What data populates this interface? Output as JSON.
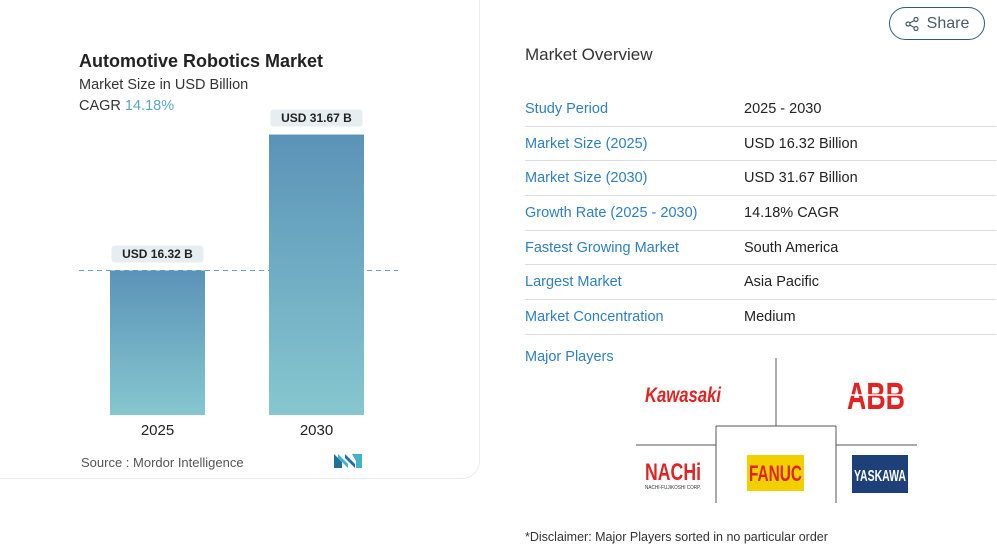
{
  "chart": {
    "title": "Automotive Robotics Market",
    "subtitle": "Market Size in USD Billion",
    "cagr_label": "CAGR",
    "cagr_value": "14.18%",
    "source": "Source :  Mordor Intelligence"
  },
  "chart_data": {
    "type": "bar",
    "categories": [
      "2025",
      "2030"
    ],
    "values": [
      16.32,
      31.67
    ],
    "data_labels": [
      "USD 16.32 B",
      "USD 31.67 B"
    ],
    "title": "Automotive Robotics Market",
    "xlabel": "",
    "ylabel": "Market Size in USD Billion",
    "ylim": [
      0,
      35
    ],
    "reference_line": 16.32,
    "colors": {
      "bar_top": "#5b93b8",
      "bar_bottom": "#86c7cf",
      "label_bg": "#e6eef2",
      "ref_line": "#6f9fc0"
    }
  },
  "share": {
    "label": "Share"
  },
  "overview": {
    "title": "Market Overview",
    "rows": [
      {
        "label": "Study Period",
        "value": "2025 - 2030"
      },
      {
        "label": "Market Size (2025)",
        "value": "USD 16.32 Billion"
      },
      {
        "label": "Market Size (2030)",
        "value": "USD 31.67 Billion"
      },
      {
        "label": "Growth Rate (2025 - 2030)",
        "value": "14.18% CAGR"
      },
      {
        "label": "Fastest Growing Market",
        "value": "South America"
      },
      {
        "label": "Largest Market",
        "value": "Asia Pacific"
      },
      {
        "label": "Market Concentration",
        "value": "Medium"
      }
    ]
  },
  "players": {
    "title": "Major Players",
    "logos": {
      "kawasaki": "Kawasaki",
      "abb": "ABB",
      "nachi": "NACHi",
      "nachi_sub": "NACHI-FUJIKOSHI CORP.",
      "fanuc": "FANUC",
      "yaskawa": "YASKAWA"
    }
  },
  "disclaimer": "*Disclaimer: Major Players sorted in no particular order"
}
